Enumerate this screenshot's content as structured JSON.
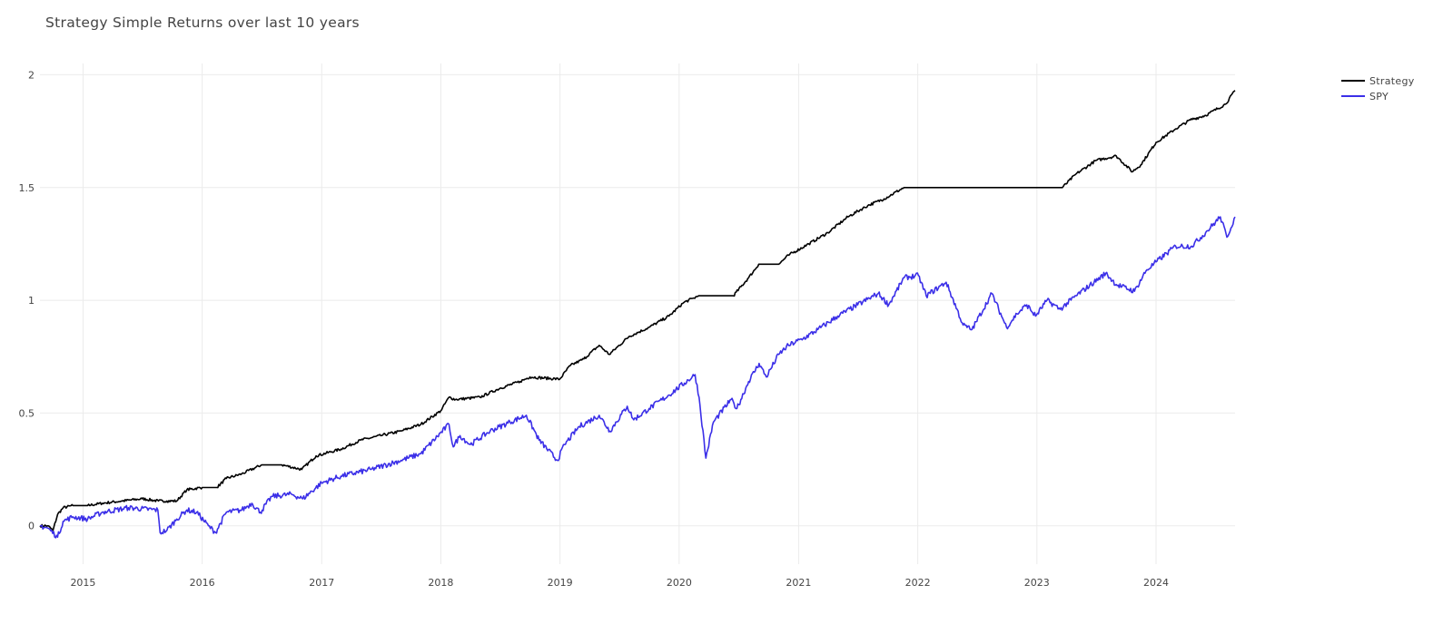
{
  "chart_data": {
    "type": "line",
    "title": "Strategy Simple Returns over last 10 years",
    "xlabel": "",
    "ylabel": "",
    "xlim": [
      "2014-08-22",
      "2024-08-30"
    ],
    "ylim": [
      -0.17,
      2.05
    ],
    "x_ticks": [
      "2015",
      "2016",
      "2017",
      "2018",
      "2019",
      "2020",
      "2021",
      "2022",
      "2023",
      "2024"
    ],
    "y_ticks": [
      "0",
      "0.5",
      "1",
      "1.5",
      "2"
    ],
    "grid": true,
    "legend_position": "top-right",
    "series": [
      {
        "name": "Strategy",
        "color": "#000000",
        "x": [
          "2014-08-22",
          "2014-09-15",
          "2014-10-01",
          "2014-10-15",
          "2014-11-01",
          "2014-12-01",
          "2015-01-15",
          "2015-03-01",
          "2015-05-01",
          "2015-07-01",
          "2015-08-20",
          "2015-09-15",
          "2015-10-15",
          "2015-11-15",
          "2016-01-01",
          "2016-02-15",
          "2016-03-15",
          "2016-05-01",
          "2016-07-01",
          "2016-09-01",
          "2016-11-01",
          "2016-12-15",
          "2017-03-01",
          "2017-05-01",
          "2017-07-01",
          "2017-09-01",
          "2017-11-01",
          "2018-01-01",
          "2018-01-26",
          "2018-02-15",
          "2018-05-01",
          "2018-07-01",
          "2018-09-01",
          "2018-10-01",
          "2018-12-31",
          "2019-02-01",
          "2019-03-15",
          "2019-05-01",
          "2019-06-01",
          "2019-08-01",
          "2019-10-01",
          "2019-12-01",
          "2020-01-15",
          "2020-02-15",
          "2020-03-01",
          "2020-06-15",
          "2020-08-01",
          "2020-09-01",
          "2020-11-01",
          "2020-12-01",
          "2021-02-01",
          "2021-04-01",
          "2021-06-01",
          "2021-08-01",
          "2021-09-20",
          "2021-11-20",
          "2023-03-20",
          "2023-05-01",
          "2023-07-01",
          "2023-09-01",
          "2023-10-20",
          "2023-11-15",
          "2024-01-01",
          "2024-03-01",
          "2024-04-15",
          "2024-06-01",
          "2024-08-01",
          "2024-08-30"
        ],
        "values": [
          0.0,
          0.0,
          -0.02,
          0.05,
          0.08,
          0.09,
          0.09,
          0.1,
          0.11,
          0.12,
          0.11,
          0.11,
          0.11,
          0.16,
          0.17,
          0.17,
          0.21,
          0.23,
          0.27,
          0.27,
          0.25,
          0.31,
          0.34,
          0.38,
          0.4,
          0.42,
          0.45,
          0.51,
          0.57,
          0.56,
          0.57,
          0.61,
          0.64,
          0.66,
          0.65,
          0.71,
          0.74,
          0.8,
          0.76,
          0.84,
          0.88,
          0.93,
          0.99,
          1.01,
          1.02,
          1.02,
          1.1,
          1.16,
          1.16,
          1.2,
          1.25,
          1.3,
          1.37,
          1.42,
          1.45,
          1.5,
          1.5,
          1.56,
          1.62,
          1.64,
          1.57,
          1.6,
          1.7,
          1.76,
          1.8,
          1.82,
          1.87,
          1.93
        ]
      },
      {
        "name": "SPY",
        "color": "#3b2fe8",
        "x": [
          "2014-08-22",
          "2014-09-15",
          "2014-10-15",
          "2014-11-01",
          "2014-12-01",
          "2015-01-15",
          "2015-03-01",
          "2015-05-20",
          "2015-08-18",
          "2015-08-25",
          "2015-09-15",
          "2015-10-15",
          "2015-11-15",
          "2015-12-15",
          "2016-01-20",
          "2016-02-11",
          "2016-03-15",
          "2016-05-01",
          "2016-06-01",
          "2016-06-27",
          "2016-08-01",
          "2016-10-01",
          "2016-11-04",
          "2017-01-01",
          "2017-03-01",
          "2017-06-01",
          "2017-09-01",
          "2017-11-01",
          "2018-01-26",
          "2018-02-08",
          "2018-03-01",
          "2018-04-01",
          "2018-06-01",
          "2018-08-01",
          "2018-09-20",
          "2018-10-29",
          "2018-12-24",
          "2019-01-15",
          "2019-03-01",
          "2019-05-01",
          "2019-06-03",
          "2019-07-26",
          "2019-08-15",
          "2019-10-01",
          "2019-12-01",
          "2020-02-19",
          "2020-03-02",
          "2020-03-23",
          "2020-04-15",
          "2020-06-08",
          "2020-06-26",
          "2020-08-01",
          "2020-09-02",
          "2020-09-24",
          "2020-11-01",
          "2020-12-01",
          "2021-01-15",
          "2021-03-01",
          "2021-05-01",
          "2021-07-01",
          "2021-09-02",
          "2021-10-04",
          "2021-11-20",
          "2022-01-03",
          "2022-01-27",
          "2022-03-29",
          "2022-05-20",
          "2022-06-16",
          "2022-08-16",
          "2022-09-30",
          "2022-11-01",
          "2022-12-01",
          "2022-12-28",
          "2023-02-01",
          "2023-03-13",
          "2023-05-01",
          "2023-07-31",
          "2023-09-01",
          "2023-10-27",
          "2023-12-01",
          "2024-01-01",
          "2024-03-01",
          "2024-04-19",
          "2024-06-01",
          "2024-07-16",
          "2024-08-05",
          "2024-08-30"
        ],
        "values": [
          0.0,
          -0.01,
          -0.05,
          0.02,
          0.04,
          0.03,
          0.06,
          0.08,
          0.07,
          -0.03,
          -0.02,
          0.03,
          0.07,
          0.06,
          0.0,
          -0.03,
          0.06,
          0.07,
          0.1,
          0.06,
          0.13,
          0.14,
          0.12,
          0.19,
          0.22,
          0.25,
          0.29,
          0.32,
          0.45,
          0.35,
          0.4,
          0.36,
          0.42,
          0.46,
          0.49,
          0.38,
          0.29,
          0.36,
          0.44,
          0.49,
          0.42,
          0.53,
          0.47,
          0.52,
          0.58,
          0.67,
          0.57,
          0.3,
          0.46,
          0.56,
          0.52,
          0.64,
          0.72,
          0.66,
          0.76,
          0.8,
          0.83,
          0.87,
          0.93,
          0.98,
          1.03,
          0.98,
          1.1,
          1.11,
          1.02,
          1.08,
          0.89,
          0.87,
          1.03,
          0.88,
          0.94,
          0.98,
          0.93,
          1.0,
          0.96,
          1.02,
          1.12,
          1.07,
          1.04,
          1.13,
          1.17,
          1.24,
          1.24,
          1.3,
          1.37,
          1.28,
          1.37
        ]
      }
    ]
  }
}
